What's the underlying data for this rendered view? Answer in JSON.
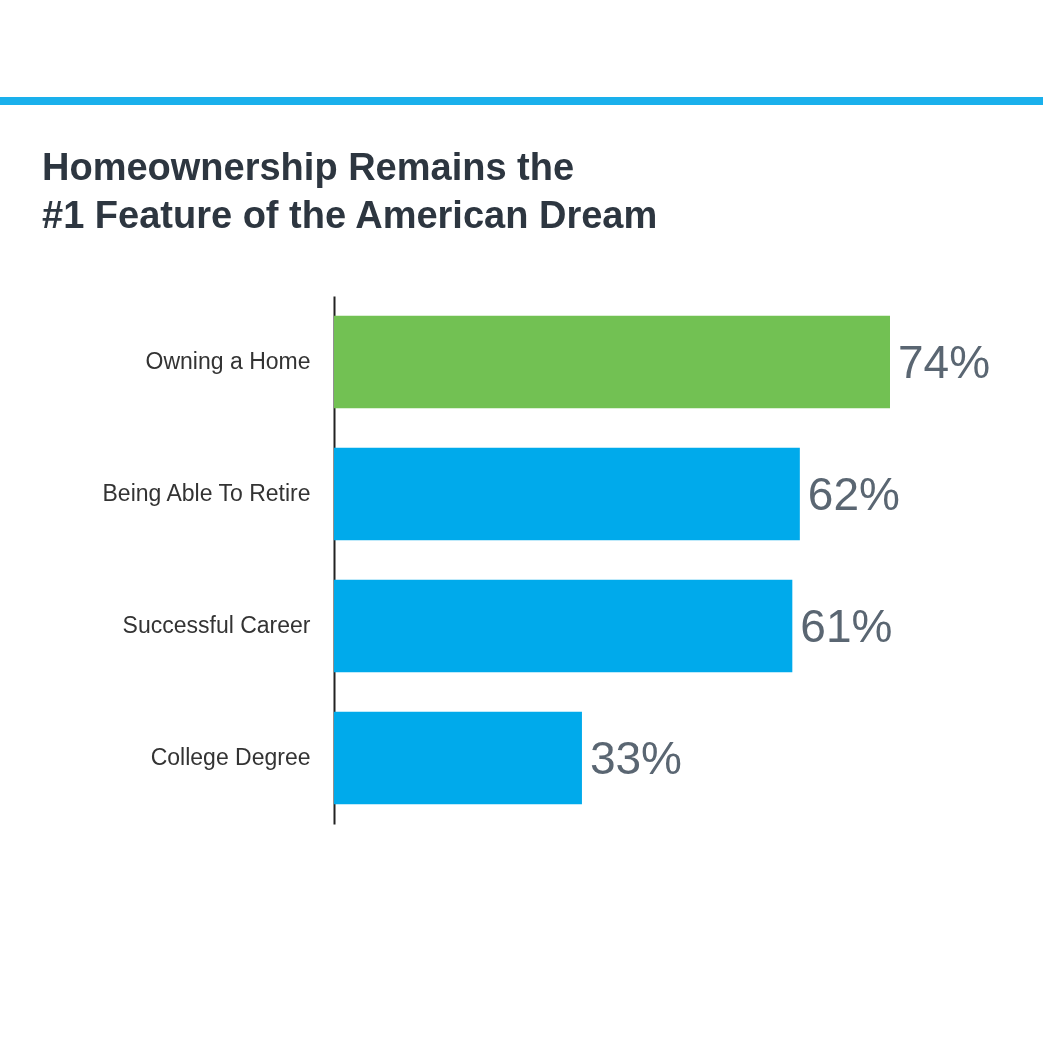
{
  "chart_data": {
    "type": "bar",
    "orientation": "horizontal",
    "title": "Homeownership Remains the\n#1 Feature of the American Dream",
    "categories": [
      "Owning a Home",
      "Being Able To Retire",
      "Successful Career",
      "College Degree"
    ],
    "values": [
      74,
      62,
      61,
      33
    ],
    "colors": [
      "#72c153",
      "#00aaeb",
      "#00aaeb",
      "#00aaeb"
    ],
    "value_labels": [
      "74%",
      "62%",
      "61%",
      "33%"
    ]
  }
}
